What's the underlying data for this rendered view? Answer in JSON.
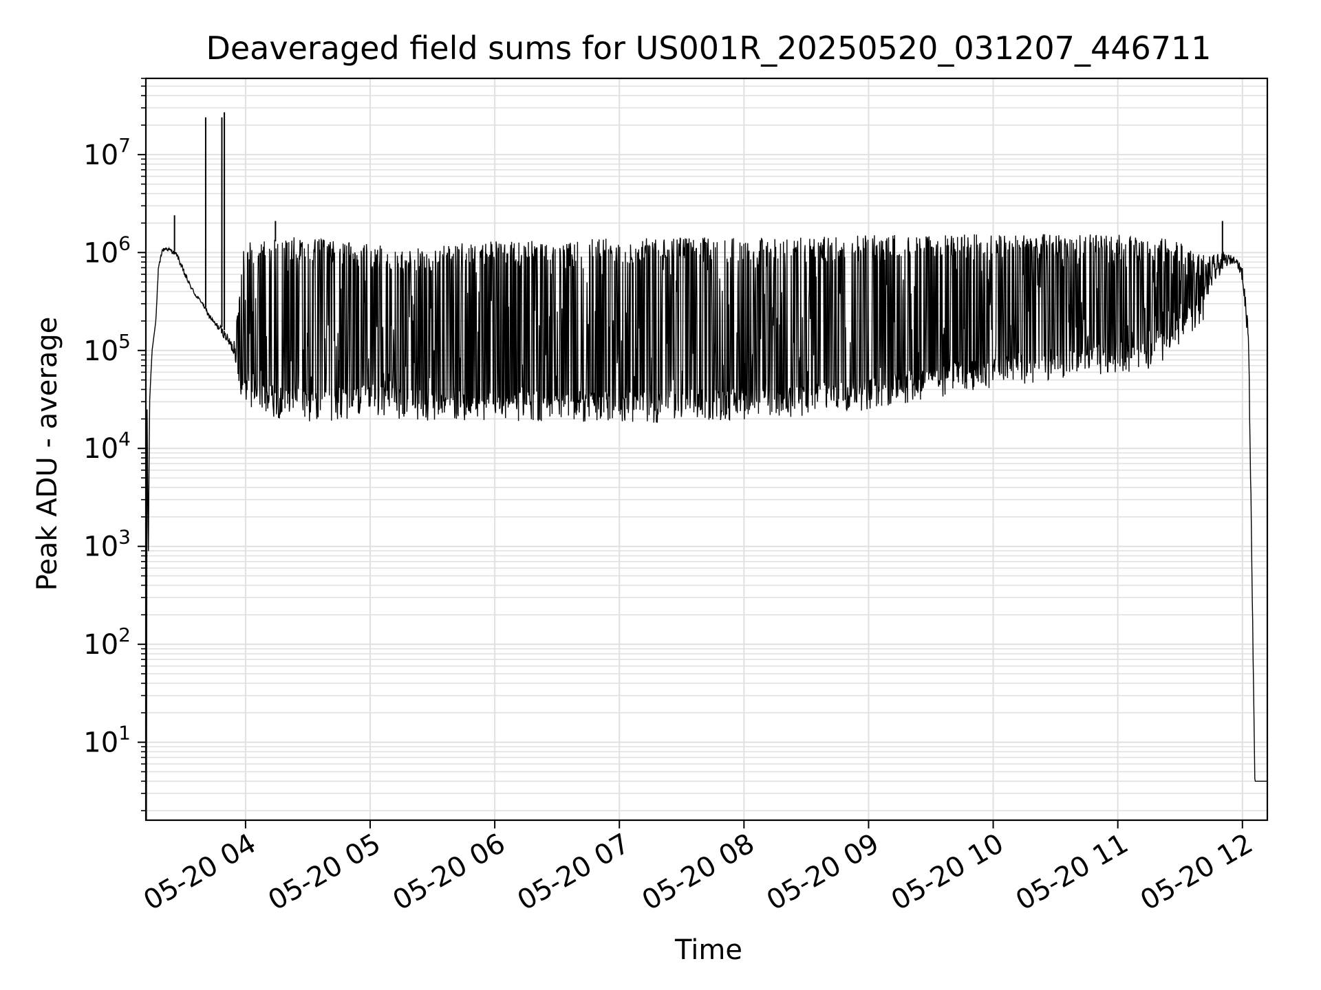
{
  "chart_data": {
    "type": "line",
    "title": "Deaveraged field sums for US001R_20250520_031207_446711",
    "xlabel": "Time",
    "ylabel": "Peak ADU - average",
    "x_axis_kind": "time",
    "x_range_hours": [
      3.2,
      12.2
    ],
    "xticks": [
      {
        "hour": 4,
        "label": "05-20 04"
      },
      {
        "hour": 5,
        "label": "05-20 05"
      },
      {
        "hour": 6,
        "label": "05-20 06"
      },
      {
        "hour": 7,
        "label": "05-20 07"
      },
      {
        "hour": 8,
        "label": "05-20 08"
      },
      {
        "hour": 9,
        "label": "05-20 09"
      },
      {
        "hour": 10,
        "label": "05-20 10"
      },
      {
        "hour": 11,
        "label": "05-20 11"
      },
      {
        "hour": 12,
        "label": "05-20 12"
      }
    ],
    "y_scale": "log",
    "ylim": [
      1.6,
      60000000
    ],
    "yticks": [
      {
        "value": 10,
        "base": "10",
        "exponent": "1"
      },
      {
        "value": 100,
        "base": "10",
        "exponent": "2"
      },
      {
        "value": 1000,
        "base": "10",
        "exponent": "3"
      },
      {
        "value": 10000,
        "base": "10",
        "exponent": "4"
      },
      {
        "value": 100000,
        "base": "10",
        "exponent": "5"
      },
      {
        "value": 1000000,
        "base": "10",
        "exponent": "6"
      },
      {
        "value": 10000000,
        "base": "10",
        "exponent": "7"
      }
    ],
    "grid": true,
    "line_color": "#000000",
    "grid_color": "#e0e0e0",
    "series": [
      {
        "x_hours": [
          3.2,
          3.21,
          3.22,
          3.23,
          3.25,
          3.28,
          3.3,
          3.33,
          3.36,
          3.4,
          3.45,
          3.5,
          3.55,
          3.6,
          3.65,
          3.7,
          3.75,
          3.8,
          3.85,
          3.9,
          4.0,
          4.1,
          4.2,
          4.3,
          4.5,
          4.7,
          5.0,
          5.3,
          5.6,
          6.0,
          6.3,
          6.6,
          7.0,
          7.3,
          7.6,
          8.0,
          8.5,
          9.0,
          9.5,
          10.0,
          10.5,
          11.0,
          11.3,
          11.5,
          11.7,
          11.85,
          11.95,
          12.0,
          12.05,
          12.1,
          12.13,
          12.2
        ],
        "envelope_max": [
          95000,
          25000,
          780,
          30000,
          100000,
          200000,
          700000,
          1100000,
          1150000,
          1100000,
          1000000,
          700000,
          500000,
          380000,
          320000,
          250000,
          200000,
          180000,
          150000,
          120000,
          1400000,
          1200000,
          1300000,
          1300000,
          1300000,
          1200000,
          1100000,
          1000000,
          1100000,
          1200000,
          1200000,
          1200000,
          1300000,
          1300000,
          1300000,
          1300000,
          1300000,
          1400000,
          1400000,
          1400000,
          1400000,
          1400000,
          1300000,
          1200000,
          900000,
          1000000,
          900000,
          700000,
          200000,
          4,
          4,
          4
        ],
        "envelope_min": [
          95000,
          25000,
          780,
          30000,
          100000,
          200000,
          600000,
          1000000,
          1050000,
          1000000,
          900000,
          600000,
          450000,
          350000,
          300000,
          220000,
          180000,
          150000,
          120000,
          90000,
          35000,
          32000,
          30000,
          28000,
          27000,
          26000,
          30000,
          28000,
          26000,
          25000,
          27000,
          26000,
          25000,
          26000,
          27000,
          28000,
          30000,
          35000,
          45000,
          60000,
          70000,
          80000,
          90000,
          150000,
          300000,
          700000,
          800000,
          500000,
          100000,
          4,
          4,
          4
        ],
        "spikes": [
          {
            "hour": 3.68,
            "value": 24000000
          },
          {
            "hour": 3.81,
            "value": 24000000
          },
          {
            "hour": 3.83,
            "value": 27000000
          },
          {
            "hour": 3.43,
            "value": 2400000
          },
          {
            "hour": 4.24,
            "value": 2100000
          },
          {
            "hour": 11.84,
            "value": 2100000
          }
        ]
      }
    ]
  }
}
